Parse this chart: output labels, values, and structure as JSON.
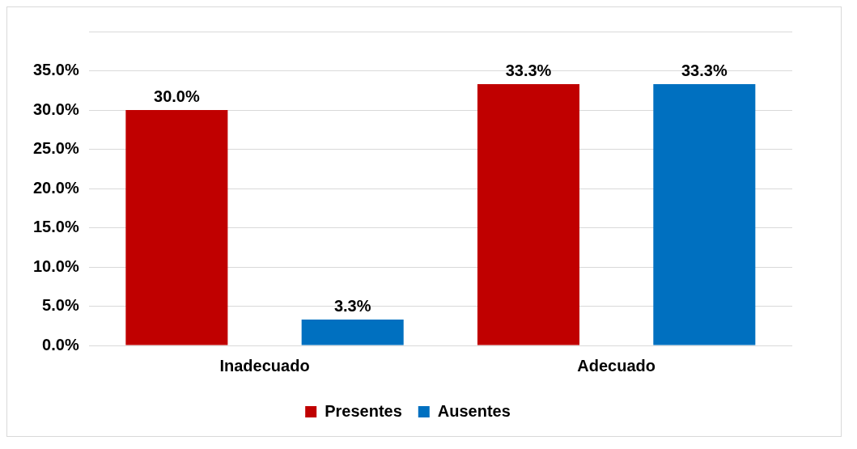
{
  "chart_data": {
    "type": "bar",
    "categories": [
      "Inadecuado",
      "Adecuado"
    ],
    "series": [
      {
        "name": "Presentes",
        "color": "#c00000",
        "values": [
          30.0,
          33.3
        ],
        "value_labels": [
          "30.0%",
          "33.3%"
        ]
      },
      {
        "name": "Ausentes",
        "color": "#0070c0",
        "values": [
          3.3,
          33.3
        ],
        "value_labels": [
          "3.3%",
          "33.3%"
        ]
      }
    ],
    "ylim": [
      0,
      40
    ],
    "yticks": [
      {
        "value": 0,
        "label": "0.0%"
      },
      {
        "value": 5,
        "label": "5.0%"
      },
      {
        "value": 10,
        "label": "10.0%"
      },
      {
        "value": 15,
        "label": "15.0%"
      },
      {
        "value": 20,
        "label": "20.0%"
      },
      {
        "value": 25,
        "label": "25.0%"
      },
      {
        "value": 30,
        "label": "30.0%"
      },
      {
        "value": 35,
        "label": "35.0%"
      },
      {
        "value": 40,
        "label": null
      }
    ],
    "grid": "y",
    "legend": "bottom"
  }
}
